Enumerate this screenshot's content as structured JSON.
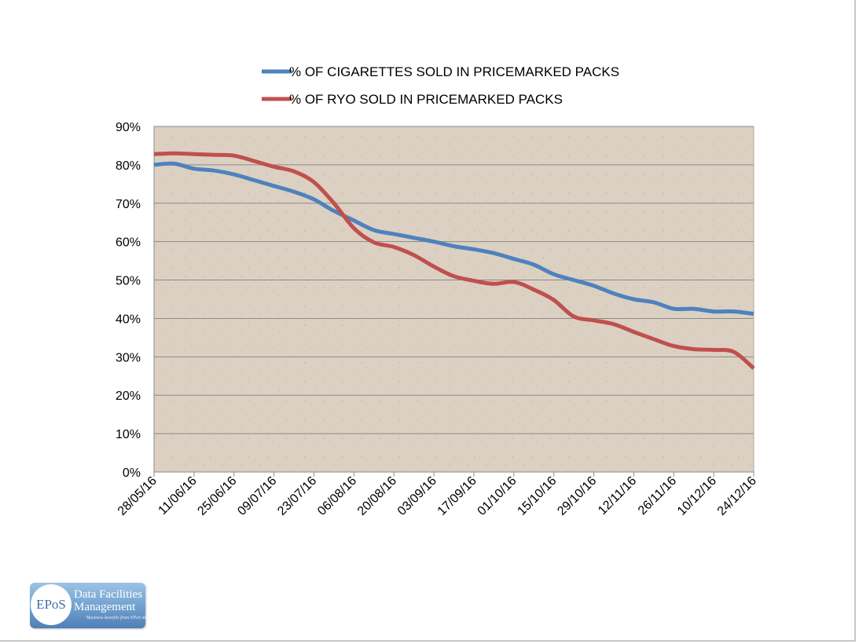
{
  "chart_data": {
    "type": "line",
    "title": "",
    "xlabel": "",
    "ylabel": "",
    "ylim": [
      0,
      90
    ],
    "y_ticks": [
      "0%",
      "10%",
      "20%",
      "30%",
      "40%",
      "50%",
      "60%",
      "70%",
      "80%",
      "90%"
    ],
    "grid": "horizontal",
    "legend_position": "top",
    "x_ticks": [
      "28/05/16",
      "11/06/16",
      "25/06/16",
      "09/07/16",
      "23/07/16",
      "06/08/16",
      "20/08/16",
      "03/09/16",
      "17/09/16",
      "01/10/16",
      "15/10/16",
      "29/10/16",
      "12/11/16",
      "26/11/16",
      "10/12/16",
      "24/12/16"
    ],
    "x": [
      "28/05/16",
      "04/06/16",
      "11/06/16",
      "18/06/16",
      "25/06/16",
      "02/07/16",
      "09/07/16",
      "16/07/16",
      "23/07/16",
      "30/07/16",
      "06/08/16",
      "13/08/16",
      "20/08/16",
      "27/08/16",
      "03/09/16",
      "10/09/16",
      "17/09/16",
      "24/09/16",
      "01/10/16",
      "08/10/16",
      "15/10/16",
      "22/10/16",
      "29/10/16",
      "05/11/16",
      "12/11/16",
      "19/11/16",
      "26/11/16",
      "03/12/16",
      "10/12/16",
      "17/12/16",
      "24/12/16"
    ],
    "series": [
      {
        "name": "% OF CIGARETTES SOLD IN PRICEMARKED PACKS",
        "color": "#4f81bd",
        "values": [
          80.0,
          80.3,
          79.0,
          78.5,
          77.5,
          76.0,
          74.5,
          73.0,
          71.0,
          68.0,
          65.5,
          63.0,
          62.0,
          61.0,
          60.0,
          58.8,
          58.0,
          57.0,
          55.5,
          54.0,
          51.5,
          50.0,
          48.5,
          46.5,
          45.0,
          44.2,
          42.5,
          42.5,
          41.8,
          41.8,
          41.2
        ]
      },
      {
        "name": "% OF RYO SOLD IN PRICEMARKED PACKS",
        "color": "#c0504d",
        "values": [
          82.8,
          83.0,
          82.8,
          82.6,
          82.4,
          81.0,
          79.5,
          78.3,
          75.5,
          70.0,
          63.5,
          59.8,
          58.6,
          56.5,
          53.5,
          51.0,
          49.8,
          49.0,
          49.5,
          47.5,
          44.8,
          40.5,
          39.5,
          38.5,
          36.5,
          34.6,
          32.8,
          32.0,
          31.8,
          31.3,
          27.0
        ]
      }
    ]
  },
  "logo": {
    "badge": "EPoS",
    "line1": "Data Facilities",
    "line2": "Management",
    "tagline": "\"Business benefits from EPoS data\""
  }
}
